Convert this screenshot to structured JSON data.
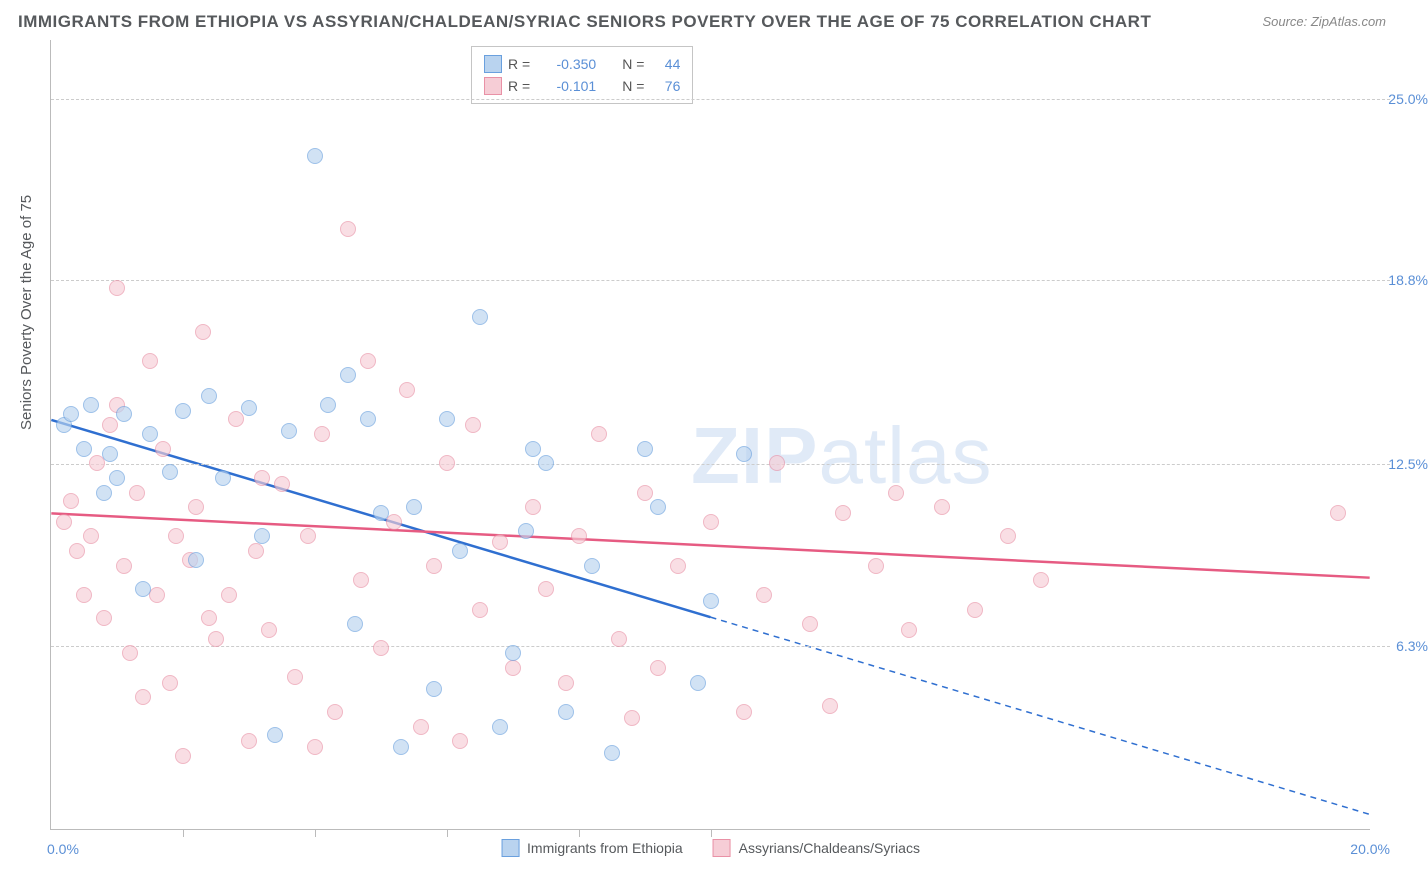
{
  "title": "IMMIGRANTS FROM ETHIOPIA VS ASSYRIAN/CHALDEAN/SYRIAC SENIORS POVERTY OVER THE AGE OF 75 CORRELATION CHART",
  "source": "Source: ZipAtlas.com",
  "ylabel": "Seniors Poverty Over the Age of 75",
  "watermark_bold": "ZIP",
  "watermark_rest": "atlas",
  "chart": {
    "type": "scatter",
    "xlim": [
      0,
      20
    ],
    "ylim": [
      0,
      27
    ],
    "x_ticks_label": {
      "0": "0.0%",
      "20": "20.0%"
    },
    "x_minor_ticks": [
      2,
      4,
      6,
      8,
      10
    ],
    "y_ticks": {
      "6.3": "6.3%",
      "12.5": "12.5%",
      "18.8": "18.8%",
      "25.0": "25.0%"
    },
    "grid_color": "#cccccc",
    "axis_color": "#bbbbbb",
    "background_color": "#ffffff",
    "series": [
      {
        "name": "Immigrants from Ethiopia",
        "color_fill": "#b9d3ef",
        "color_stroke": "#6aa0de",
        "line_color": "#2f6fd0",
        "R": "-0.350",
        "N": "44",
        "regression": {
          "x1": 0,
          "y1": 14.0,
          "x2": 20,
          "y2": 0.5,
          "solid_until_x": 10
        },
        "points": [
          [
            0.2,
            13.8
          ],
          [
            0.3,
            14.2
          ],
          [
            0.5,
            13.0
          ],
          [
            0.6,
            14.5
          ],
          [
            0.8,
            11.5
          ],
          [
            0.9,
            12.8
          ],
          [
            1.0,
            12.0
          ],
          [
            1.1,
            14.2
          ],
          [
            1.4,
            8.2
          ],
          [
            1.5,
            13.5
          ],
          [
            1.8,
            12.2
          ],
          [
            2.0,
            14.3
          ],
          [
            2.2,
            9.2
          ],
          [
            2.4,
            14.8
          ],
          [
            2.6,
            12.0
          ],
          [
            3.0,
            14.4
          ],
          [
            3.2,
            10.0
          ],
          [
            3.4,
            3.2
          ],
          [
            3.6,
            13.6
          ],
          [
            4.0,
            23.0
          ],
          [
            4.2,
            14.5
          ],
          [
            4.5,
            15.5
          ],
          [
            4.8,
            14.0
          ],
          [
            5.0,
            10.8
          ],
          [
            5.3,
            2.8
          ],
          [
            5.5,
            11.0
          ],
          [
            5.8,
            4.8
          ],
          [
            6.0,
            14.0
          ],
          [
            6.2,
            9.5
          ],
          [
            6.5,
            17.5
          ],
          [
            7.0,
            6.0
          ],
          [
            7.2,
            10.2
          ],
          [
            7.3,
            13.0
          ],
          [
            7.5,
            12.5
          ],
          [
            7.8,
            4.0
          ],
          [
            8.2,
            9.0
          ],
          [
            8.5,
            2.6
          ],
          [
            9.0,
            13.0
          ],
          [
            9.2,
            11.0
          ],
          [
            9.8,
            5.0
          ],
          [
            10.0,
            7.8
          ],
          [
            10.5,
            12.8
          ],
          [
            6.8,
            3.5
          ],
          [
            4.6,
            7.0
          ]
        ]
      },
      {
        "name": "Assyrians/Chaldeans/Syriacs",
        "color_fill": "#f6cdd6",
        "color_stroke": "#e991a6",
        "line_color": "#e65b82",
        "R": "-0.101",
        "N": "76",
        "regression": {
          "x1": 0,
          "y1": 10.8,
          "x2": 20,
          "y2": 8.6,
          "solid_until_x": 20
        },
        "points": [
          [
            0.2,
            10.5
          ],
          [
            0.3,
            11.2
          ],
          [
            0.4,
            9.5
          ],
          [
            0.5,
            8.0
          ],
          [
            0.6,
            10.0
          ],
          [
            0.7,
            12.5
          ],
          [
            0.8,
            7.2
          ],
          [
            0.9,
            13.8
          ],
          [
            1.0,
            18.5
          ],
          [
            1.1,
            9.0
          ],
          [
            1.2,
            6.0
          ],
          [
            1.3,
            11.5
          ],
          [
            1.4,
            4.5
          ],
          [
            1.5,
            16.0
          ],
          [
            1.6,
            8.0
          ],
          [
            1.7,
            13.0
          ],
          [
            1.8,
            5.0
          ],
          [
            1.9,
            10.0
          ],
          [
            2.0,
            2.5
          ],
          [
            2.1,
            9.2
          ],
          [
            2.2,
            11.0
          ],
          [
            2.3,
            17.0
          ],
          [
            2.5,
            6.5
          ],
          [
            2.7,
            8.0
          ],
          [
            2.8,
            14.0
          ],
          [
            3.0,
            3.0
          ],
          [
            3.1,
            9.5
          ],
          [
            3.3,
            6.8
          ],
          [
            3.5,
            11.8
          ],
          [
            3.7,
            5.2
          ],
          [
            3.9,
            10.0
          ],
          [
            4.1,
            13.5
          ],
          [
            4.3,
            4.0
          ],
          [
            4.5,
            20.5
          ],
          [
            4.7,
            8.5
          ],
          [
            4.8,
            16.0
          ],
          [
            5.0,
            6.2
          ],
          [
            5.2,
            10.5
          ],
          [
            5.4,
            15.0
          ],
          [
            5.6,
            3.5
          ],
          [
            5.8,
            9.0
          ],
          [
            6.0,
            12.5
          ],
          [
            6.2,
            3.0
          ],
          [
            6.5,
            7.5
          ],
          [
            6.8,
            9.8
          ],
          [
            7.0,
            5.5
          ],
          [
            7.3,
            11.0
          ],
          [
            7.5,
            8.2
          ],
          [
            7.8,
            5.0
          ],
          [
            8.0,
            10.0
          ],
          [
            8.3,
            13.5
          ],
          [
            8.6,
            6.5
          ],
          [
            9.0,
            11.5
          ],
          [
            9.5,
            9.0
          ],
          [
            10.0,
            10.5
          ],
          [
            10.5,
            4.0
          ],
          [
            11.0,
            12.5
          ],
          [
            11.5,
            7.0
          ],
          [
            12.0,
            10.8
          ],
          [
            12.5,
            9.0
          ],
          [
            12.8,
            11.5
          ],
          [
            13.5,
            11.0
          ],
          [
            14.0,
            7.5
          ],
          [
            14.5,
            10.0
          ],
          [
            15.0,
            8.5
          ],
          [
            11.8,
            4.2
          ],
          [
            13.0,
            6.8
          ],
          [
            10.8,
            8.0
          ],
          [
            9.2,
            5.5
          ],
          [
            19.5,
            10.8
          ],
          [
            6.4,
            13.8
          ],
          [
            3.2,
            12.0
          ],
          [
            8.8,
            3.8
          ],
          [
            2.4,
            7.2
          ],
          [
            4.0,
            2.8
          ],
          [
            1.0,
            14.5
          ]
        ]
      }
    ]
  },
  "legend_top": {
    "rows": [
      {
        "swatch_fill": "#b9d3ef",
        "swatch_stroke": "#6aa0de",
        "r_label": "R =",
        "r_val": "-0.350",
        "n_label": "N =",
        "n_val": "44"
      },
      {
        "swatch_fill": "#f6cdd6",
        "swatch_stroke": "#e991a6",
        "r_label": "R =",
        "r_val": "-0.101",
        "n_label": "N =",
        "n_val": "76"
      }
    ]
  },
  "colors": {
    "title": "#56595c",
    "value_text": "#5a8fd6"
  }
}
